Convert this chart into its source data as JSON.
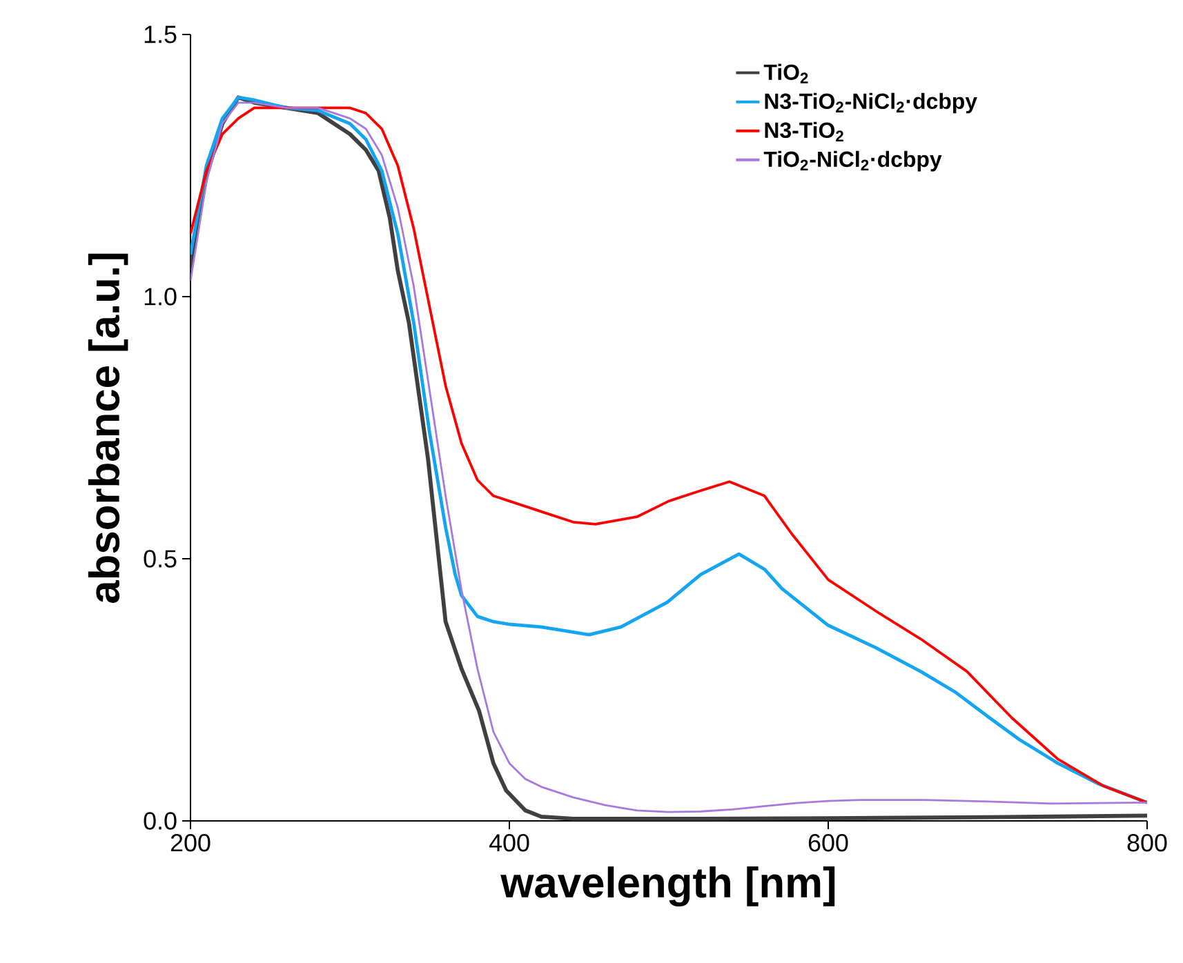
{
  "chart_data": {
    "type": "line",
    "xlabel": "wavelength [nm]",
    "ylabel": "absorbance [a.u.]",
    "xlim": [
      200,
      800
    ],
    "ylim": [
      0,
      1.5
    ],
    "xticks": [
      200,
      400,
      600,
      800
    ],
    "yticks": [
      {
        "value": 0,
        "label": "0.0"
      },
      {
        "value": 0.5,
        "label": "0.5"
      },
      {
        "value": 1,
        "label": "1.0"
      },
      {
        "value": 1.5,
        "label": "1.5"
      }
    ],
    "legend": "top right",
    "grid": false,
    "marker": "none",
    "line_style": "solid",
    "series": [
      {
        "name": "TiO$_{2}$",
        "color": "#404040",
        "x": [
          200,
          205,
          210,
          220,
          230,
          240,
          260,
          280,
          300,
          310,
          318,
          325,
          330,
          337,
          349,
          360,
          370,
          381,
          390,
          398,
          410,
          420,
          440,
          500,
          600,
          700,
          800
        ],
        "values": [
          1.05,
          1.15,
          1.23,
          1.33,
          1.38,
          1.37,
          1.36,
          1.35,
          1.31,
          1.28,
          1.24,
          1.15,
          1.05,
          0.95,
          0.69,
          0.38,
          0.29,
          0.21,
          0.11,
          0.058,
          0.02,
          0.008,
          0.004,
          0.004,
          0.005,
          0.007,
          0.01
        ]
      },
      {
        "name": "N3-TiO$_{2}$-NiCl$_{2}$·dcbpy",
        "color": "#14a5f0",
        "x": [
          200,
          210,
          220,
          230,
          240,
          260,
          280,
          300,
          310,
          320,
          330,
          340,
          350,
          360,
          366,
          370,
          380,
          390,
          400,
          420,
          440,
          450,
          470,
          499,
          520,
          544,
          560,
          571,
          600,
          630,
          658,
          680,
          701,
          720,
          744,
          770,
          800
        ],
        "values": [
          1.08,
          1.25,
          1.34,
          1.38,
          1.375,
          1.36,
          1.355,
          1.33,
          1.3,
          1.24,
          1.12,
          0.95,
          0.74,
          0.56,
          0.47,
          0.43,
          0.39,
          0.38,
          0.375,
          0.37,
          0.36,
          0.355,
          0.37,
          0.417,
          0.47,
          0.509,
          0.48,
          0.443,
          0.373,
          0.33,
          0.285,
          0.245,
          0.197,
          0.155,
          0.11,
          0.07,
          0.035
        ]
      },
      {
        "name": "N3-TiO$_{2}$",
        "color": "#ff0000",
        "x": [
          200,
          210,
          220,
          230,
          240,
          260,
          280,
          300,
          310,
          320,
          330,
          340,
          350,
          360,
          370,
          380,
          390,
          400,
          420,
          440,
          454,
          480,
          500,
          520,
          538,
          560,
          577,
          600,
          630,
          658,
          687,
          715,
          744,
          773,
          800
        ],
        "values": [
          1.12,
          1.24,
          1.31,
          1.34,
          1.36,
          1.36,
          1.36,
          1.36,
          1.35,
          1.32,
          1.25,
          1.13,
          0.98,
          0.83,
          0.72,
          0.65,
          0.62,
          0.61,
          0.59,
          0.57,
          0.566,
          0.58,
          0.61,
          0.63,
          0.647,
          0.62,
          0.548,
          0.46,
          0.4,
          0.347,
          0.285,
          0.197,
          0.118,
          0.066,
          0.035
        ]
      },
      {
        "name": "TiO$_{2}$-NiCl$_{2}$·dcbpy",
        "color": "#a779dc",
        "x": [
          200,
          210,
          220,
          230,
          240,
          260,
          280,
          300,
          310,
          320,
          330,
          340,
          350,
          360,
          370,
          380,
          390,
          400,
          410,
          420,
          440,
          460,
          480,
          500,
          520,
          540,
          560,
          580,
          600,
          620,
          640,
          660,
          700,
          740,
          800
        ],
        "values": [
          1.03,
          1.22,
          1.33,
          1.37,
          1.37,
          1.36,
          1.36,
          1.34,
          1.32,
          1.27,
          1.17,
          1.02,
          0.82,
          0.62,
          0.44,
          0.29,
          0.17,
          0.11,
          0.08,
          0.065,
          0.045,
          0.03,
          0.02,
          0.017,
          0.018,
          0.022,
          0.028,
          0.034,
          0.038,
          0.04,
          0.04,
          0.04,
          0.037,
          0.033,
          0.035
        ]
      }
    ]
  }
}
